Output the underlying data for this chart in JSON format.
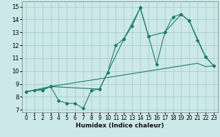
{
  "xlabel": "Humidex (Indice chaleur)",
  "xlim": [
    -0.5,
    23.5
  ],
  "ylim": [
    6.8,
    15.4
  ],
  "yticks": [
    7,
    8,
    9,
    10,
    11,
    12,
    13,
    14,
    15
  ],
  "xticks": [
    0,
    1,
    2,
    3,
    4,
    5,
    6,
    7,
    8,
    9,
    10,
    11,
    12,
    13,
    14,
    15,
    16,
    17,
    18,
    19,
    20,
    21,
    22,
    23
  ],
  "background_color": "#cce8e8",
  "grid_color": "#aacccc",
  "line_color": "#1a7a6e",
  "line1_x": [
    0,
    1,
    2,
    3,
    4,
    5,
    6,
    7,
    8,
    9,
    10,
    11,
    12,
    13,
    14,
    15,
    16,
    17,
    18,
    19,
    20,
    21,
    22,
    23
  ],
  "line1_y": [
    8.4,
    8.5,
    8.5,
    8.8,
    7.7,
    7.5,
    7.5,
    7.1,
    8.5,
    8.6,
    9.9,
    12.0,
    12.5,
    13.5,
    14.9,
    12.7,
    10.5,
    13.0,
    14.2,
    14.4,
    13.9,
    12.4,
    11.1,
    10.4
  ],
  "line2_x": [
    0,
    3,
    9,
    12,
    14,
    15,
    17,
    19,
    20,
    22,
    23
  ],
  "line2_y": [
    8.4,
    8.8,
    8.6,
    12.5,
    14.9,
    12.7,
    13.0,
    14.4,
    13.9,
    11.1,
    10.4
  ],
  "line3_x": [
    0,
    1,
    2,
    3,
    4,
    5,
    6,
    7,
    8,
    9,
    10,
    11,
    12,
    13,
    14,
    15,
    16,
    17,
    18,
    19,
    20,
    21,
    22,
    23
  ],
  "line3_y": [
    8.4,
    8.5,
    8.6,
    8.8,
    8.9,
    9.0,
    9.1,
    9.2,
    9.3,
    9.4,
    9.5,
    9.6,
    9.7,
    9.8,
    9.9,
    10.0,
    10.1,
    10.2,
    10.3,
    10.4,
    10.5,
    10.6,
    10.35,
    10.4
  ],
  "xlabel_fontsize": 6.5,
  "tick_fontsize": 5.5
}
